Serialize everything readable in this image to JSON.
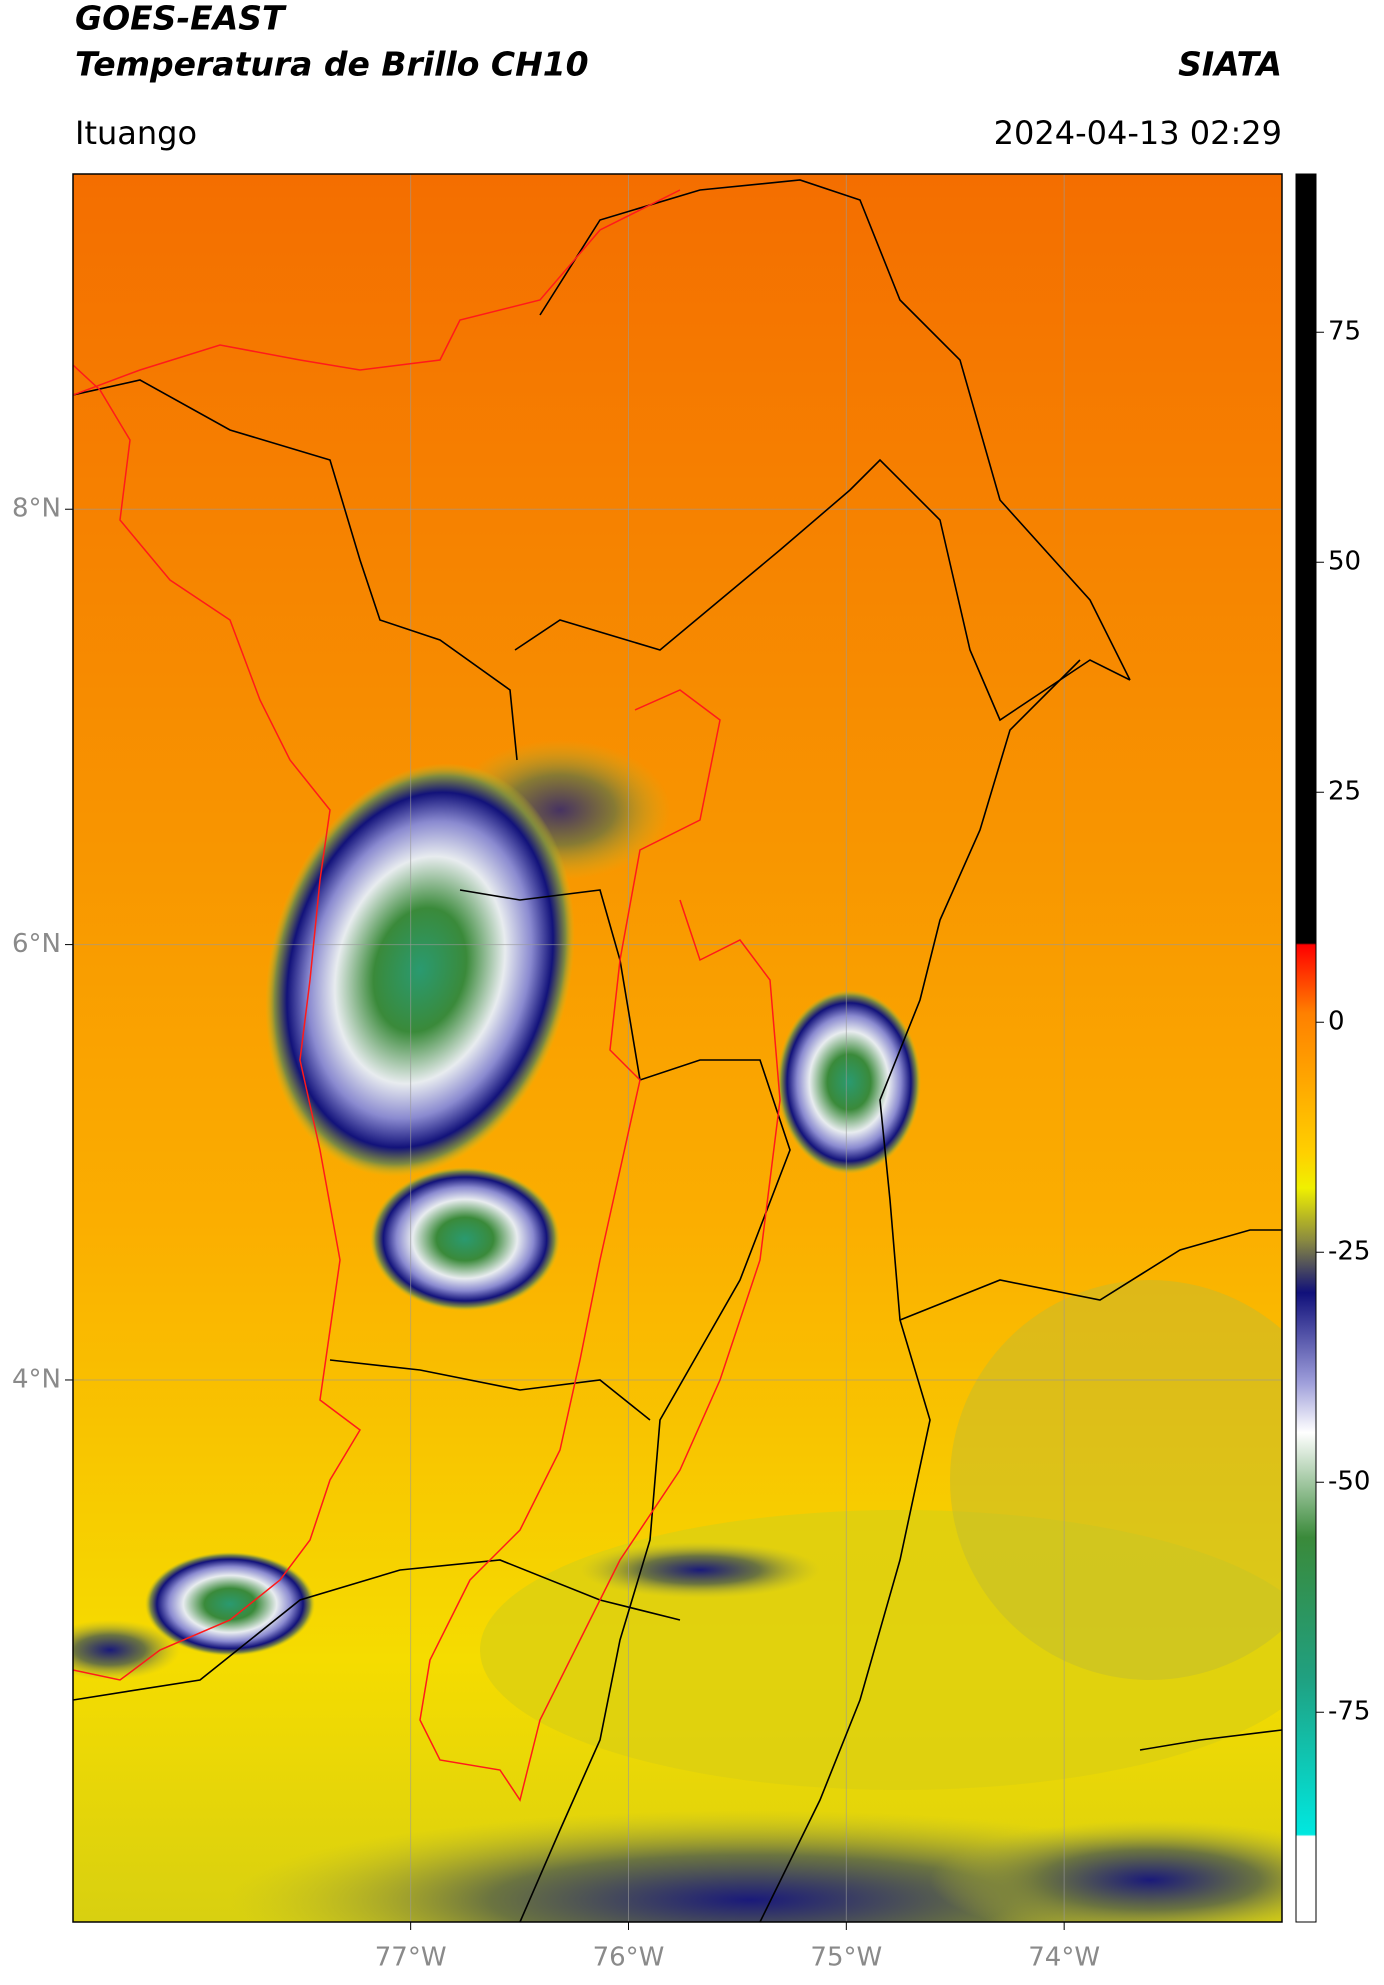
{
  "header": {
    "title": "GOES-EAST",
    "subtitle": "Temperatura de Brillo CH10",
    "source": "SIATA",
    "location": "Ituango",
    "datetime": "2024-04-13 02:29"
  },
  "map": {
    "xlim": [
      -78.55,
      -73.0
    ],
    "ylim": [
      1.51,
      9.54
    ],
    "xticks": [
      {
        "value": -77,
        "label": "77°W"
      },
      {
        "value": -76,
        "label": "76°W"
      },
      {
        "value": -75,
        "label": "75°W"
      },
      {
        "value": -74,
        "label": "74°W"
      }
    ],
    "yticks": [
      {
        "value": 8,
        "label": "8°N"
      },
      {
        "value": 6,
        "label": "6°N"
      },
      {
        "value": 4,
        "label": "4°N"
      }
    ]
  },
  "colorbar": {
    "lim": [
      -97.8,
      92.2
    ],
    "ticks": [
      75,
      50,
      25,
      0,
      -25,
      -50,
      -75
    ]
  }
}
